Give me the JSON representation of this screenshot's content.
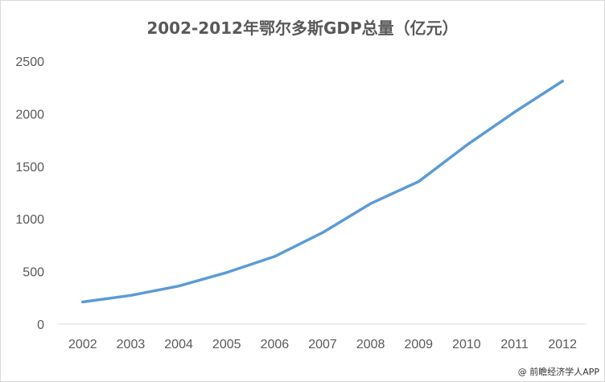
{
  "chart_data": {
    "type": "line",
    "title": "2002-2012年鄂尔多斯GDP总量（亿元）",
    "xlabel": "",
    "ylabel": "",
    "categories": [
      "2002",
      "2003",
      "2004",
      "2005",
      "2006",
      "2007",
      "2008",
      "2009",
      "2010",
      "2011",
      "2012"
    ],
    "series": [
      {
        "values": [
          210,
          273,
          362,
          490,
          643,
          870,
          1145,
          1355,
          1700,
          2015,
          2310
        ],
        "color": "#5b9bd5"
      }
    ],
    "ylim": [
      0,
      2500
    ],
    "yticks": [
      0,
      500,
      1000,
      1500,
      2000,
      2500
    ],
    "grid": false,
    "legend": "none"
  },
  "watermark": "@ 前瞻经济学人APP"
}
